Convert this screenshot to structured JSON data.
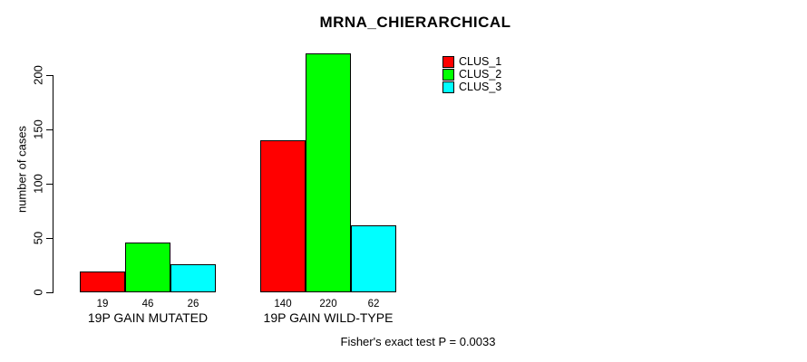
{
  "chart_data": {
    "type": "bar",
    "title": "MRNA_CHIERARCHICAL",
    "ylabel": "number of cases",
    "xlabel": "",
    "categories": [
      "19P GAIN MUTATED",
      "19P GAIN WILD-TYPE"
    ],
    "series": [
      {
        "name": "CLUS_1",
        "color": "#ff0000",
        "values": [
          19,
          140
        ]
      },
      {
        "name": "CLUS_2",
        "color": "#00ff00",
        "values": [
          46,
          220
        ]
      },
      {
        "name": "CLUS_3",
        "color": "#00ffff",
        "values": [
          26,
          62
        ]
      }
    ],
    "yticks": [
      0,
      50,
      100,
      150,
      200
    ],
    "ylim": [
      0,
      224
    ],
    "grid": false,
    "show_bar_values": true,
    "legend": {
      "position": "top-right",
      "entries": [
        "CLUS_1",
        "CLUS_2",
        "CLUS_3"
      ]
    },
    "annotation": "Fisher's exact test P = 0.0033"
  }
}
